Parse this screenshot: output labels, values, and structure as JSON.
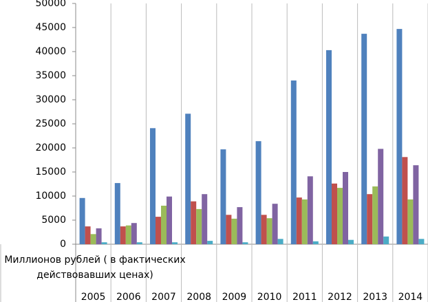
{
  "chart_data": {
    "type": "bar",
    "x_label": "Миллионов рублей ( в фактических действовавших ценах)",
    "categories": [
      "2005",
      "2006",
      "2007",
      "2008",
      "2009",
      "2010",
      "2011",
      "2012",
      "2013",
      "2014"
    ],
    "series": [
      {
        "color": "#4f81bd",
        "values": [
          9600,
          12700,
          24100,
          27100,
          19700,
          21400,
          34000,
          40300,
          43700,
          44700
        ]
      },
      {
        "color": "#c0504d",
        "values": [
          3700,
          3700,
          5700,
          8900,
          6100,
          6100,
          9700,
          12600,
          10400,
          18100
        ]
      },
      {
        "color": "#9bbb59",
        "values": [
          2100,
          3900,
          8000,
          7300,
          5300,
          5400,
          9300,
          11700,
          12000,
          9300
        ]
      },
      {
        "color": "#8064a2",
        "values": [
          3300,
          4400,
          9900,
          10400,
          7700,
          8400,
          14100,
          15000,
          19800,
          16400
        ]
      },
      {
        "color": "#4bacc6",
        "values": [
          400,
          400,
          400,
          700,
          400,
          1100,
          600,
          900,
          1600,
          1100
        ]
      }
    ],
    "ylim": [
      0,
      50000
    ],
    "yticks": [
      0,
      5000,
      10000,
      15000,
      20000,
      25000,
      30000,
      35000,
      40000,
      45000,
      50000
    ]
  }
}
